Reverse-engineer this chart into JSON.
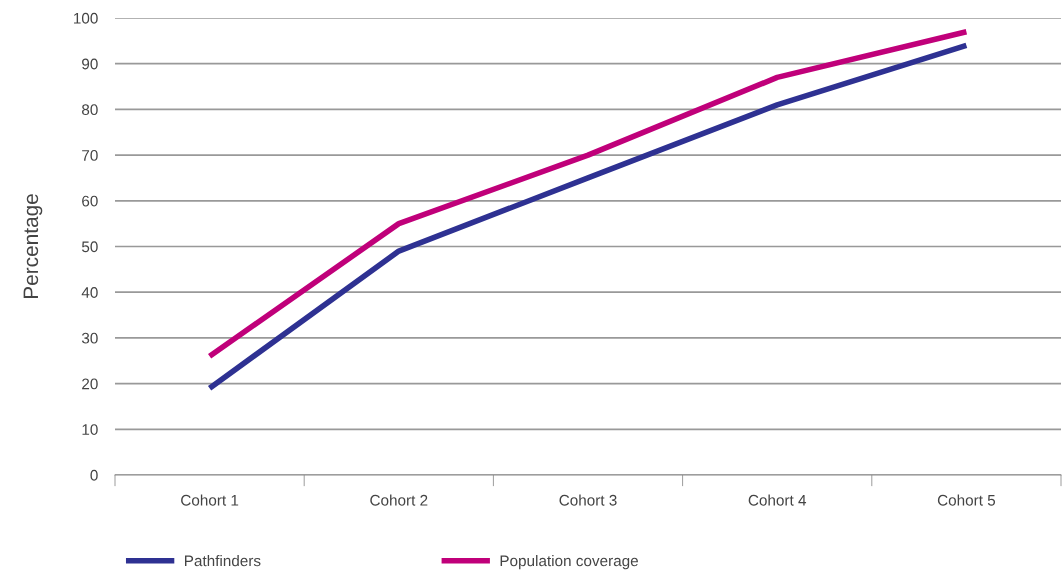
{
  "chart_data": {
    "type": "line",
    "ylabel": "Percentage",
    "categories": [
      "Cohort 1",
      "Cohort 2",
      "Cohort 3",
      "Cohort 4",
      "Cohort 5"
    ],
    "series": [
      {
        "name": "Pathfinders",
        "color": "#2e3192",
        "values": [
          19,
          49,
          65,
          81,
          94
        ]
      },
      {
        "name": "Population coverage",
        "color": "#c0007a",
        "values": [
          26,
          55,
          70,
          87,
          97
        ]
      }
    ],
    "ylim": [
      0,
      100
    ],
    "yticks": [
      0,
      10,
      20,
      30,
      40,
      50,
      60,
      70,
      80,
      90,
      100
    ],
    "grid": "y",
    "legend": "bottom",
    "marker": "none",
    "line_style": "solid"
  }
}
